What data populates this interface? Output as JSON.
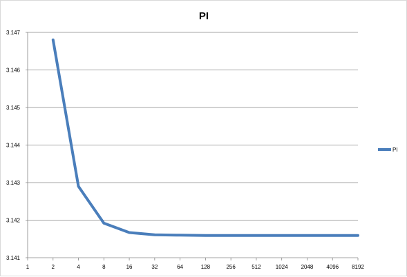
{
  "chart_data": {
    "type": "line",
    "title": "PI",
    "xlabel": "",
    "ylabel": "",
    "categories": [
      "1",
      "2",
      "4",
      "8",
      "16",
      "32",
      "64",
      "128",
      "256",
      "512",
      "1024",
      "2048",
      "4096",
      "8192"
    ],
    "series": [
      {
        "name": "PI",
        "color": "#4a7ebb",
        "values": [
          null,
          3.1468,
          3.1429,
          3.14192,
          3.14167,
          3.14161,
          3.1416,
          3.14159,
          3.14159,
          3.14159,
          3.14159,
          3.14159,
          3.14159,
          3.14159
        ]
      }
    ],
    "ylim": [
      3.141,
      3.147
    ],
    "yticks": [
      "3.141",
      "3.142",
      "3.143",
      "3.144",
      "3.145",
      "3.146",
      "3.147"
    ],
    "grid": true,
    "legend_position": "right"
  }
}
